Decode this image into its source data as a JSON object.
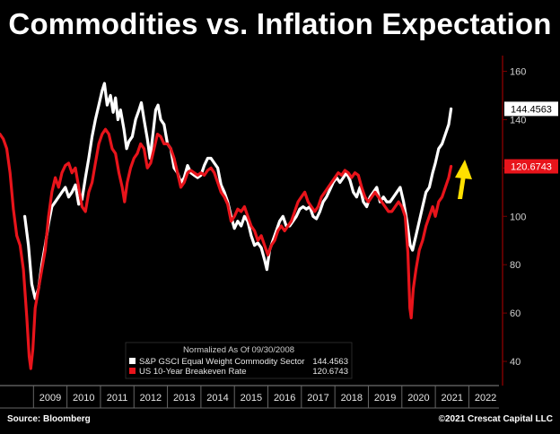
{
  "title": "Commodities vs. Inflation Expectation",
  "footer": {
    "source": "Source: Bloomberg",
    "copyright": "©2021 Crescat Capital LLC"
  },
  "chart_data": {
    "type": "line",
    "title": "Commodities vs. Inflation Expectation",
    "x_ticks": [
      "2009",
      "2010",
      "2011",
      "2012",
      "2013",
      "2014",
      "2015",
      "2016",
      "2017",
      "2018",
      "2019",
      "2020",
      "2021",
      "2022"
    ],
    "y_ticks": [
      40,
      60,
      80,
      100,
      120,
      140,
      160
    ],
    "ylim": [
      30,
      165
    ],
    "xlim": [
      2008.0,
      2022.9
    ],
    "legend": {
      "header": "Normalized As Of 09/30/2008",
      "placement": "bottom-center",
      "entries": [
        {
          "label": "S&P GSCI Equal Weight Commodity Sector",
          "value": "144.4563"
        },
        {
          "label": "US 10-Year Breakeven Rate",
          "value": "120.6743"
        }
      ]
    },
    "last_value_labels": [
      "144.4563",
      "120.6743"
    ],
    "series": [
      {
        "name": "S&P GSCI Equal Weight Commodity Sector",
        "color": "#ffffff",
        "points": [
          [
            2008.74,
            100
          ],
          [
            2008.85,
            88
          ],
          [
            2008.95,
            72
          ],
          [
            2009.05,
            66
          ],
          [
            2009.15,
            70
          ],
          [
            2009.25,
            80
          ],
          [
            2009.35,
            88
          ],
          [
            2009.45,
            97
          ],
          [
            2009.55,
            104
          ],
          [
            2009.65,
            106
          ],
          [
            2009.75,
            108
          ],
          [
            2009.85,
            110
          ],
          [
            2009.95,
            112
          ],
          [
            2010.05,
            108
          ],
          [
            2010.15,
            110
          ],
          [
            2010.25,
            113
          ],
          [
            2010.35,
            105
          ],
          [
            2010.45,
            107
          ],
          [
            2010.55,
            116
          ],
          [
            2010.65,
            124
          ],
          [
            2010.75,
            133
          ],
          [
            2010.85,
            140
          ],
          [
            2010.95,
            146
          ],
          [
            2011.05,
            152
          ],
          [
            2011.12,
            155
          ],
          [
            2011.2,
            146
          ],
          [
            2011.3,
            150
          ],
          [
            2011.38,
            143
          ],
          [
            2011.45,
            149
          ],
          [
            2011.52,
            140
          ],
          [
            2011.6,
            144
          ],
          [
            2011.7,
            136
          ],
          [
            2011.78,
            128
          ],
          [
            2011.85,
            131
          ],
          [
            2011.95,
            133
          ],
          [
            2012.05,
            140
          ],
          [
            2012.15,
            144
          ],
          [
            2012.22,
            147
          ],
          [
            2012.3,
            140
          ],
          [
            2012.4,
            132
          ],
          [
            2012.48,
            124
          ],
          [
            2012.55,
            132
          ],
          [
            2012.65,
            144
          ],
          [
            2012.72,
            146
          ],
          [
            2012.8,
            140
          ],
          [
            2012.9,
            138
          ],
          [
            2013.0,
            130
          ],
          [
            2013.1,
            128
          ],
          [
            2013.2,
            120
          ],
          [
            2013.3,
            118
          ],
          [
            2013.4,
            114
          ],
          [
            2013.5,
            116
          ],
          [
            2013.6,
            121
          ],
          [
            2013.7,
            118
          ],
          [
            2013.8,
            117
          ],
          [
            2013.9,
            116
          ],
          [
            2014.0,
            117
          ],
          [
            2014.1,
            121
          ],
          [
            2014.2,
            124
          ],
          [
            2014.3,
            124
          ],
          [
            2014.4,
            122
          ],
          [
            2014.5,
            120
          ],
          [
            2014.6,
            113
          ],
          [
            2014.7,
            110
          ],
          [
            2014.8,
            106
          ],
          [
            2014.9,
            100
          ],
          [
            2015.0,
            95
          ],
          [
            2015.1,
            98
          ],
          [
            2015.2,
            96
          ],
          [
            2015.3,
            100
          ],
          [
            2015.4,
            98
          ],
          [
            2015.5,
            92
          ],
          [
            2015.6,
            88
          ],
          [
            2015.7,
            89
          ],
          [
            2015.8,
            87
          ],
          [
            2015.9,
            82
          ],
          [
            2015.97,
            78
          ],
          [
            2016.05,
            86
          ],
          [
            2016.15,
            90
          ],
          [
            2016.25,
            94
          ],
          [
            2016.35,
            98
          ],
          [
            2016.45,
            100
          ],
          [
            2016.55,
            96
          ],
          [
            2016.65,
            96
          ],
          [
            2016.75,
            98
          ],
          [
            2016.85,
            100
          ],
          [
            2016.95,
            103
          ],
          [
            2017.05,
            104
          ],
          [
            2017.15,
            103
          ],
          [
            2017.25,
            104
          ],
          [
            2017.35,
            100
          ],
          [
            2017.45,
            99
          ],
          [
            2017.55,
            102
          ],
          [
            2017.65,
            106
          ],
          [
            2017.75,
            108
          ],
          [
            2017.85,
            111
          ],
          [
            2017.95,
            114
          ],
          [
            2018.05,
            116
          ],
          [
            2018.15,
            114
          ],
          [
            2018.25,
            116
          ],
          [
            2018.35,
            118
          ],
          [
            2018.45,
            115
          ],
          [
            2018.55,
            110
          ],
          [
            2018.65,
            108
          ],
          [
            2018.75,
            112
          ],
          [
            2018.85,
            106
          ],
          [
            2018.95,
            104
          ],
          [
            2019.05,
            108
          ],
          [
            2019.15,
            110
          ],
          [
            2019.25,
            112
          ],
          [
            2019.35,
            106
          ],
          [
            2019.45,
            108
          ],
          [
            2019.55,
            106
          ],
          [
            2019.65,
            106
          ],
          [
            2019.75,
            108
          ],
          [
            2019.85,
            110
          ],
          [
            2019.95,
            112
          ],
          [
            2020.05,
            106
          ],
          [
            2020.15,
            98
          ],
          [
            2020.25,
            88
          ],
          [
            2020.32,
            86
          ],
          [
            2020.42,
            92
          ],
          [
            2020.52,
            98
          ],
          [
            2020.62,
            104
          ],
          [
            2020.72,
            110
          ],
          [
            2020.82,
            112
          ],
          [
            2020.92,
            118
          ],
          [
            2021.0,
            122
          ],
          [
            2021.1,
            128
          ],
          [
            2021.2,
            130
          ],
          [
            2021.3,
            134
          ],
          [
            2021.4,
            138
          ],
          [
            2021.47,
            144.4563
          ]
        ]
      },
      {
        "name": "US 10-Year Breakeven Rate",
        "color": "#e8141b",
        "points": [
          [
            2008.0,
            134
          ],
          [
            2008.1,
            132
          ],
          [
            2008.2,
            128
          ],
          [
            2008.3,
            118
          ],
          [
            2008.4,
            103
          ],
          [
            2008.5,
            92
          ],
          [
            2008.6,
            88
          ],
          [
            2008.7,
            78
          ],
          [
            2008.8,
            58
          ],
          [
            2008.87,
            42
          ],
          [
            2008.92,
            37
          ],
          [
            2008.98,
            45
          ],
          [
            2009.05,
            62
          ],
          [
            2009.15,
            70
          ],
          [
            2009.25,
            78
          ],
          [
            2009.35,
            86
          ],
          [
            2009.45,
            100
          ],
          [
            2009.55,
            110
          ],
          [
            2009.65,
            116
          ],
          [
            2009.75,
            112
          ],
          [
            2009.85,
            118
          ],
          [
            2009.95,
            121
          ],
          [
            2010.05,
            122
          ],
          [
            2010.15,
            118
          ],
          [
            2010.25,
            120
          ],
          [
            2010.35,
            112
          ],
          [
            2010.45,
            104
          ],
          [
            2010.55,
            102
          ],
          [
            2010.65,
            110
          ],
          [
            2010.75,
            114
          ],
          [
            2010.85,
            122
          ],
          [
            2010.95,
            130
          ],
          [
            2011.05,
            134
          ],
          [
            2011.15,
            136
          ],
          [
            2011.25,
            134
          ],
          [
            2011.35,
            128
          ],
          [
            2011.45,
            126
          ],
          [
            2011.55,
            118
          ],
          [
            2011.65,
            112
          ],
          [
            2011.72,
            106
          ],
          [
            2011.8,
            114
          ],
          [
            2011.9,
            120
          ],
          [
            2012.0,
            124
          ],
          [
            2012.1,
            126
          ],
          [
            2012.2,
            130
          ],
          [
            2012.3,
            128
          ],
          [
            2012.4,
            120
          ],
          [
            2012.5,
            122
          ],
          [
            2012.6,
            128
          ],
          [
            2012.7,
            134
          ],
          [
            2012.8,
            133
          ],
          [
            2012.9,
            130
          ],
          [
            2013.0,
            130
          ],
          [
            2013.1,
            128
          ],
          [
            2013.2,
            124
          ],
          [
            2013.3,
            118
          ],
          [
            2013.4,
            112
          ],
          [
            2013.5,
            114
          ],
          [
            2013.6,
            118
          ],
          [
            2013.7,
            119
          ],
          [
            2013.8,
            118
          ],
          [
            2013.9,
            117
          ],
          [
            2014.0,
            118
          ],
          [
            2014.1,
            117
          ],
          [
            2014.2,
            119
          ],
          [
            2014.3,
            120
          ],
          [
            2014.4,
            118
          ],
          [
            2014.5,
            114
          ],
          [
            2014.6,
            110
          ],
          [
            2014.7,
            108
          ],
          [
            2014.8,
            105
          ],
          [
            2014.9,
            98
          ],
          [
            2015.0,
            100
          ],
          [
            2015.1,
            103
          ],
          [
            2015.2,
            102
          ],
          [
            2015.3,
            104
          ],
          [
            2015.4,
            100
          ],
          [
            2015.5,
            96
          ],
          [
            2015.6,
            94
          ],
          [
            2015.7,
            90
          ],
          [
            2015.8,
            92
          ],
          [
            2015.9,
            88
          ],
          [
            2016.0,
            84
          ],
          [
            2016.1,
            88
          ],
          [
            2016.2,
            90
          ],
          [
            2016.3,
            94
          ],
          [
            2016.4,
            96
          ],
          [
            2016.5,
            94
          ],
          [
            2016.6,
            96
          ],
          [
            2016.7,
            98
          ],
          [
            2016.8,
            102
          ],
          [
            2016.9,
            106
          ],
          [
            2017.0,
            108
          ],
          [
            2017.1,
            110
          ],
          [
            2017.2,
            106
          ],
          [
            2017.3,
            104
          ],
          [
            2017.4,
            102
          ],
          [
            2017.5,
            104
          ],
          [
            2017.6,
            108
          ],
          [
            2017.7,
            110
          ],
          [
            2017.8,
            112
          ],
          [
            2017.9,
            114
          ],
          [
            2018.0,
            116
          ],
          [
            2018.1,
            118
          ],
          [
            2018.2,
            117
          ],
          [
            2018.3,
            119
          ],
          [
            2018.4,
            118
          ],
          [
            2018.5,
            116
          ],
          [
            2018.6,
            118
          ],
          [
            2018.7,
            117
          ],
          [
            2018.8,
            112
          ],
          [
            2018.9,
            108
          ],
          [
            2019.0,
            106
          ],
          [
            2019.1,
            108
          ],
          [
            2019.2,
            110
          ],
          [
            2019.3,
            108
          ],
          [
            2019.4,
            106
          ],
          [
            2019.5,
            104
          ],
          [
            2019.6,
            102
          ],
          [
            2019.7,
            102
          ],
          [
            2019.8,
            104
          ],
          [
            2019.9,
            106
          ],
          [
            2020.0,
            104
          ],
          [
            2020.1,
            100
          ],
          [
            2020.18,
            85
          ],
          [
            2020.24,
            62
          ],
          [
            2020.28,
            58
          ],
          [
            2020.34,
            70
          ],
          [
            2020.42,
            78
          ],
          [
            2020.52,
            86
          ],
          [
            2020.62,
            90
          ],
          [
            2020.72,
            96
          ],
          [
            2020.82,
            100
          ],
          [
            2020.92,
            104
          ],
          [
            2021.0,
            100
          ],
          [
            2021.1,
            106
          ],
          [
            2021.2,
            108
          ],
          [
            2021.3,
            112
          ],
          [
            2021.4,
            116
          ],
          [
            2021.47,
            120.6743
          ]
        ]
      }
    ],
    "annotations": [
      {
        "type": "arrow",
        "direction": "up",
        "color": "#ffe000"
      }
    ]
  }
}
